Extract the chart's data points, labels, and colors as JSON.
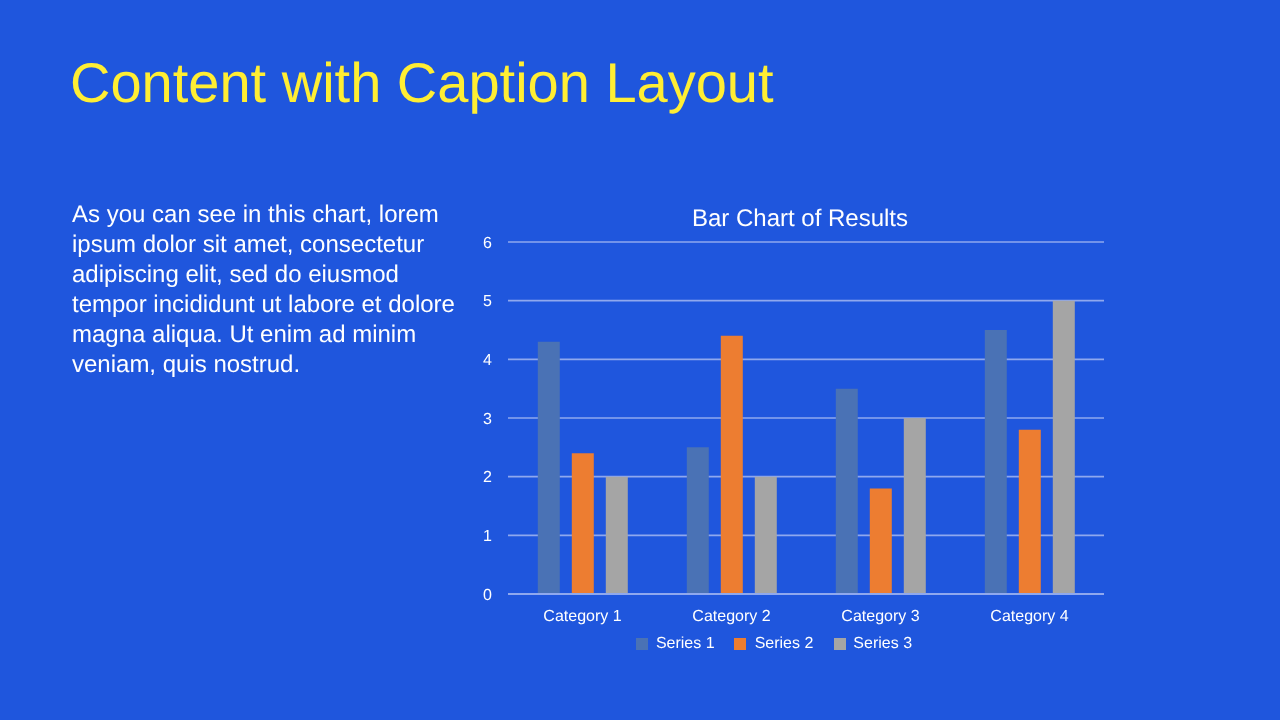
{
  "chart_data": {
    "type": "bar",
    "title": "Content with Caption Layout",
    "subtitle": "Bar Chart of Results",
    "annotations": [
      "As you can see in this chart, lorem ipsum dolor sit amet, consectetur adipiscing elit, sed do eiusmod tempor incididunt ut labore et dolore magna aliqua. Ut enim ad minim veniam, quis nostrud."
    ],
    "categories": [
      "Category 1",
      "Category 2",
      "Category 3",
      "Category 4"
    ],
    "series": [
      {
        "name": "Series 1",
        "color": "#4a72b5",
        "values": [
          4.3,
          2.5,
          3.5,
          4.5
        ]
      },
      {
        "name": "Series 2",
        "color": "#ed7d31",
        "values": [
          2.4,
          4.4,
          1.8,
          2.8
        ]
      },
      {
        "name": "Series 3",
        "color": "#a5a5a5",
        "values": [
          2,
          2,
          3,
          5
        ]
      }
    ],
    "ylim": [
      0,
      6
    ],
    "yticks": [
      0,
      1,
      2,
      3,
      4,
      5,
      6
    ],
    "grid": "y",
    "legend": "bottom"
  }
}
